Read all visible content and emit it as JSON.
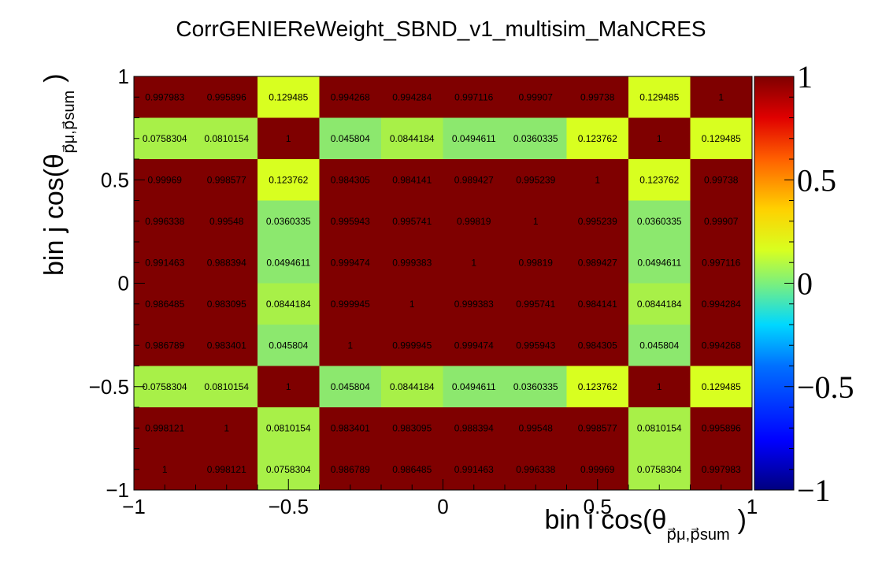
{
  "chart_data": {
    "type": "heatmap",
    "title": "CorrGENIEReWeight_SBND_v1_multisim_MaNCRES",
    "xlabel": {
      "main": "bin i cos(θ",
      "sub": "p⃗μ,p⃗sum",
      "close": ")"
    },
    "ylabel": {
      "main": "bin j cos(θ",
      "sub": "p⃗μ,p⃗sum",
      "close": ")"
    },
    "xlim": [
      -1,
      1
    ],
    "ylim": [
      -1,
      1
    ],
    "zlim": [
      -1,
      1
    ],
    "x_ticks": [
      "−1",
      "−0.5",
      "0",
      "0.5",
      "1"
    ],
    "y_ticks": [
      "−1",
      "−0.5",
      "0",
      "0.5",
      "1"
    ],
    "z_ticks": [
      "−1",
      "−0.5",
      "0",
      "0.5",
      "1"
    ],
    "colormap": "rainbow",
    "rows_top_to_bottom": [
      [
        "0.997983",
        "0.995896",
        "0.129485",
        "0.994268",
        "0.994284",
        "0.997116",
        "0.99907",
        "0.99738",
        "0.129485",
        "1"
      ],
      [
        "0.0758304",
        "0.0810154",
        "1",
        "0.045804",
        "0.0844184",
        "0.0494611",
        "0.0360335",
        "0.123762",
        "1",
        "0.129485"
      ],
      [
        "0.99969",
        "0.998577",
        "0.123762",
        "0.984305",
        "0.984141",
        "0.989427",
        "0.995239",
        "1",
        "0.123762",
        "0.99738"
      ],
      [
        "0.996338",
        "0.99548",
        "0.0360335",
        "0.995943",
        "0.995741",
        "0.99819",
        "1",
        "0.995239",
        "0.0360335",
        "0.99907"
      ],
      [
        "0.991463",
        "0.988394",
        "0.0494611",
        "0.999474",
        "0.999383",
        "1",
        "0.99819",
        "0.989427",
        "0.0494611",
        "0.997116"
      ],
      [
        "0.986485",
        "0.983095",
        "0.0844184",
        "0.999945",
        "1",
        "0.999383",
        "0.995741",
        "0.984141",
        "0.0844184",
        "0.994284"
      ],
      [
        "0.986789",
        "0.983401",
        "0.045804",
        "1",
        "0.999945",
        "0.999474",
        "0.995943",
        "0.984305",
        "0.045804",
        "0.994268"
      ],
      [
        "0.0758304",
        "0.0810154",
        "1",
        "0.045804",
        "0.0844184",
        "0.0494611",
        "0.0360335",
        "0.123762",
        "1",
        "0.129485"
      ],
      [
        "0.998121",
        "1",
        "0.0810154",
        "0.983401",
        "0.983095",
        "0.988394",
        "0.99548",
        "0.998577",
        "0.0810154",
        "0.995896"
      ],
      [
        "1",
        "0.998121",
        "0.0758304",
        "0.986789",
        "0.986485",
        "0.991463",
        "0.996338",
        "0.99969",
        "0.0758304",
        "0.997983"
      ]
    ]
  }
}
